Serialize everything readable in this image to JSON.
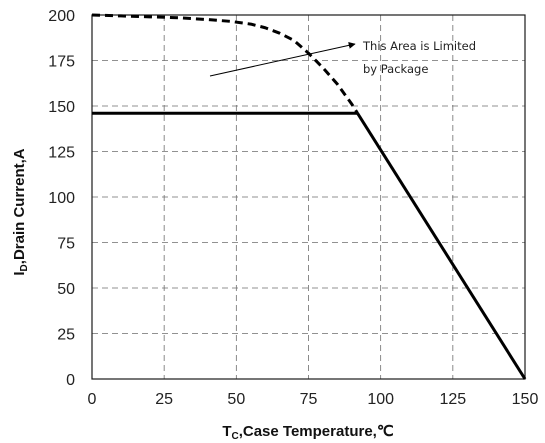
{
  "chart_data": {
    "type": "line",
    "title": "",
    "xlabel": {
      "main": "T",
      "sub": "C",
      "rest": ",Case Temperature,℃"
    },
    "ylabel": {
      "main": "I",
      "sub": "D",
      "rest": ",Drain Current,A"
    },
    "xlim": [
      0,
      150
    ],
    "ylim": [
      0,
      200
    ],
    "x_ticks": [
      "0",
      "25",
      "50",
      "75",
      "100",
      "125",
      "150"
    ],
    "y_ticks": [
      "0",
      "25",
      "50",
      "75",
      "100",
      "125",
      "150",
      "175",
      "200"
    ],
    "grid": "dashed",
    "series": [
      {
        "style": "dashed",
        "x": [
          0,
          10,
          20,
          30,
          40,
          48,
          55,
          60,
          65,
          70,
          75,
          80,
          85,
          90,
          92
        ],
        "y": [
          200,
          199.5,
          199,
          198.5,
          197.5,
          196.5,
          195,
          193,
          190,
          186,
          179,
          171,
          162,
          151,
          146
        ]
      },
      {
        "style": "solid",
        "x": [
          0,
          92
        ],
        "y": [
          146,
          146
        ]
      },
      {
        "style": "solid",
        "x": [
          92,
          150
        ],
        "y": [
          146,
          0
        ]
      }
    ],
    "annotations": [
      {
        "lines": [
          "This Area is Limited",
          "by Package"
        ]
      }
    ]
  },
  "colors": {
    "line": "#000000",
    "grid": "#6e6e6e",
    "frame": "#1a1a1a",
    "background": "#ffffff"
  }
}
